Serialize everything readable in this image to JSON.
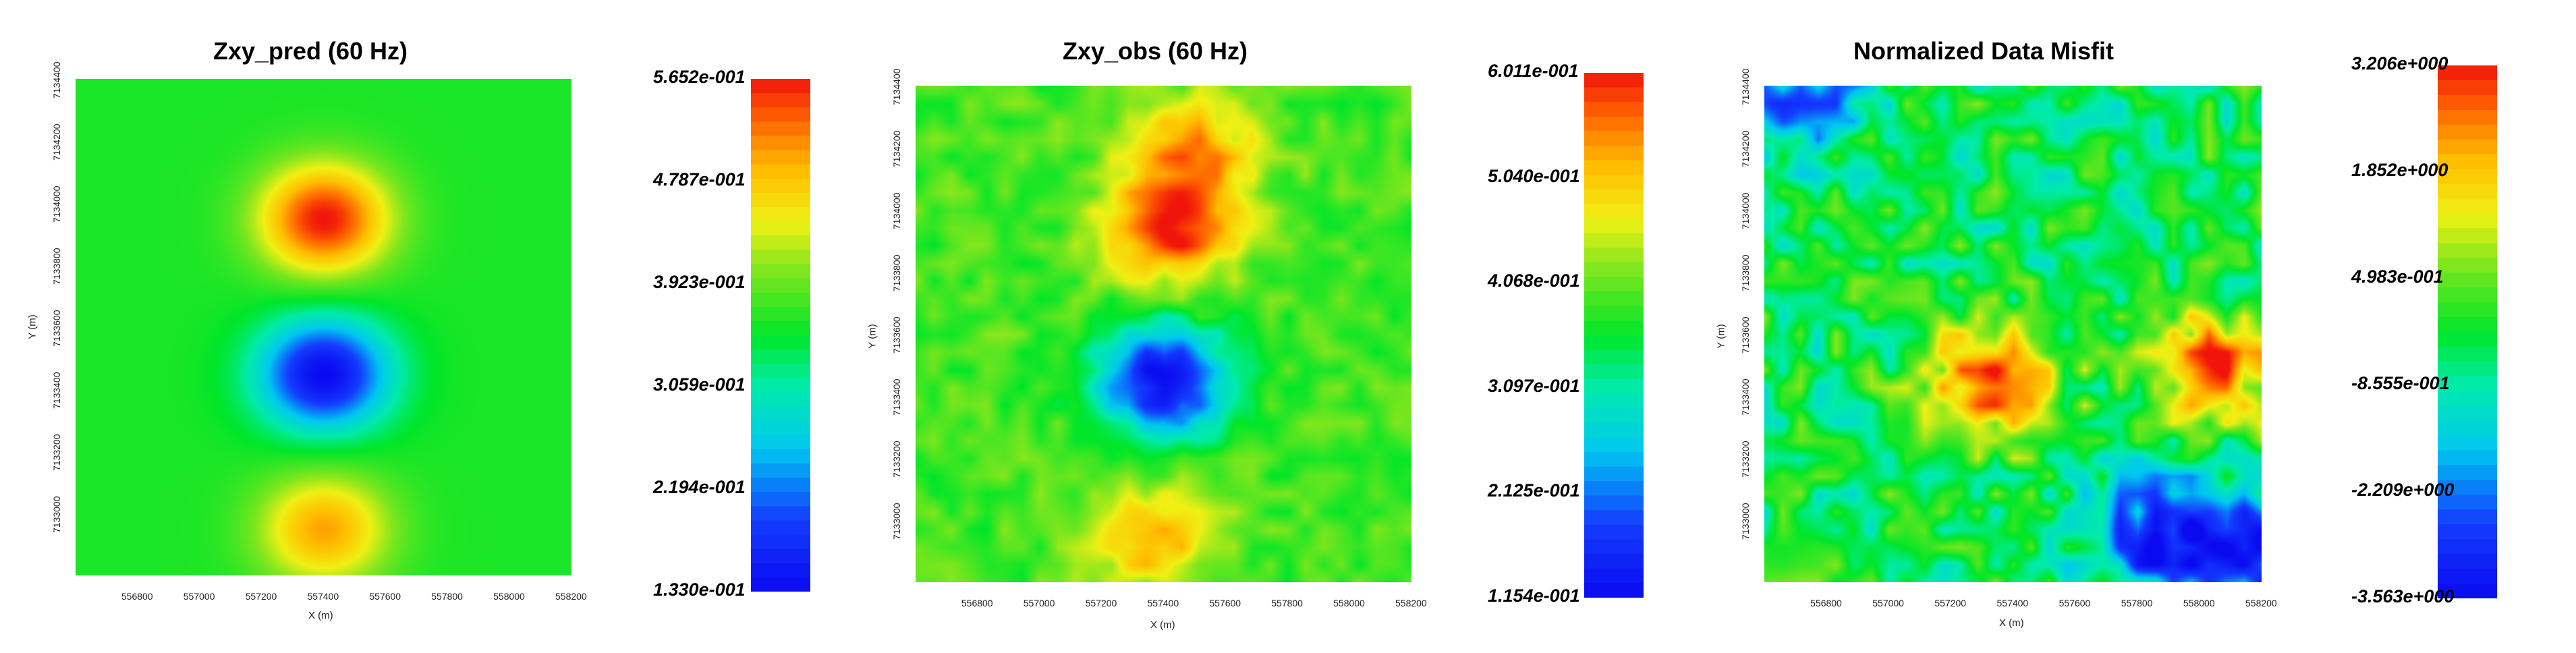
{
  "chart_data": [
    {
      "type": "heatmap",
      "title": "Zxy_pred (60 Hz)",
      "xlabel": "X (m)",
      "ylabel": "Y (m)",
      "x_ticks": [
        "556800",
        "557000",
        "557200",
        "557400",
        "557600",
        "557800",
        "558000",
        "558200"
      ],
      "y_ticks": [
        "7133000",
        "7133200",
        "7133400",
        "7133600",
        "7133800",
        "7134000",
        "7134200",
        "7134400"
      ],
      "xlim": [
        556600,
        558200
      ],
      "ylim": [
        7132800,
        7134400
      ],
      "colorbar_labels": [
        "5.652e-001",
        "4.787e-001",
        "3.923e-001",
        "3.059e-001",
        "2.194e-001",
        "1.330e-001"
      ],
      "colorbar_range": [
        0.133,
        0.5652
      ],
      "background_value": 0.36,
      "features": [
        {
          "x": 557400,
          "y": 7133950,
          "value": 0.565
        },
        {
          "x": 557400,
          "y": 7133450,
          "value": 0.133
        },
        {
          "x": 557400,
          "y": 7132950,
          "value": 0.5
        },
        {
          "x": 556700,
          "y": 7132900,
          "value": 0.36
        }
      ],
      "noise": 0.0
    },
    {
      "type": "heatmap",
      "title": "Zxy_obs (60 Hz)",
      "xlabel": "X (m)",
      "ylabel": "Y (m)",
      "x_ticks": [
        "556800",
        "557000",
        "557200",
        "557400",
        "557600",
        "557800",
        "558000",
        "558200"
      ],
      "y_ticks": [
        "7133000",
        "7133200",
        "7133400",
        "7133600",
        "7133800",
        "7134000",
        "7134200",
        "7134400"
      ],
      "xlim": [
        556600,
        558200
      ],
      "ylim": [
        7132800,
        7134400
      ],
      "colorbar_labels": [
        "6.011e-001",
        "5.040e-001",
        "4.068e-001",
        "3.097e-001",
        "2.125e-001",
        "1.154e-001"
      ],
      "colorbar_range": [
        0.1154,
        0.6011
      ],
      "background_value": 0.39,
      "features": [
        {
          "x": 557420,
          "y": 7133950,
          "value": 0.6
        },
        {
          "x": 557400,
          "y": 7133450,
          "value": 0.12
        },
        {
          "x": 557350,
          "y": 7132950,
          "value": 0.52
        },
        {
          "x": 557500,
          "y": 7134200,
          "value": 0.52
        }
      ],
      "noise": 0.035
    },
    {
      "type": "heatmap",
      "title": "Normalized Data Misfit",
      "xlabel": "X (m)",
      "ylabel": "Y (m)",
      "x_ticks": [
        "556800",
        "557000",
        "557200",
        "557400",
        "557600",
        "557800",
        "558000",
        "558200"
      ],
      "y_ticks": [
        "7133000",
        "7133200",
        "7133400",
        "7133600",
        "7133800",
        "7134000",
        "7134200",
        "7134400"
      ],
      "xlim": [
        556600,
        558200
      ],
      "ylim": [
        7132800,
        7134400
      ],
      "colorbar_labels": [
        "3.206e+000",
        "1.852e+000",
        "4.983e-001",
        "-8.555e-001",
        "-2.209e+000",
        "-3.563e+000"
      ],
      "colorbar_range": [
        -3.563,
        3.206
      ],
      "background_value": -0.3,
      "features": [
        {
          "x": 557330,
          "y": 7133450,
          "value": 2.9
        },
        {
          "x": 558050,
          "y": 7133500,
          "value": 2.6
        },
        {
          "x": 558150,
          "y": 7132900,
          "value": -3.4
        },
        {
          "x": 557850,
          "y": 7132950,
          "value": -3.0
        },
        {
          "x": 556700,
          "y": 7134350,
          "value": -2.4
        }
      ],
      "noise": 1.1
    }
  ]
}
